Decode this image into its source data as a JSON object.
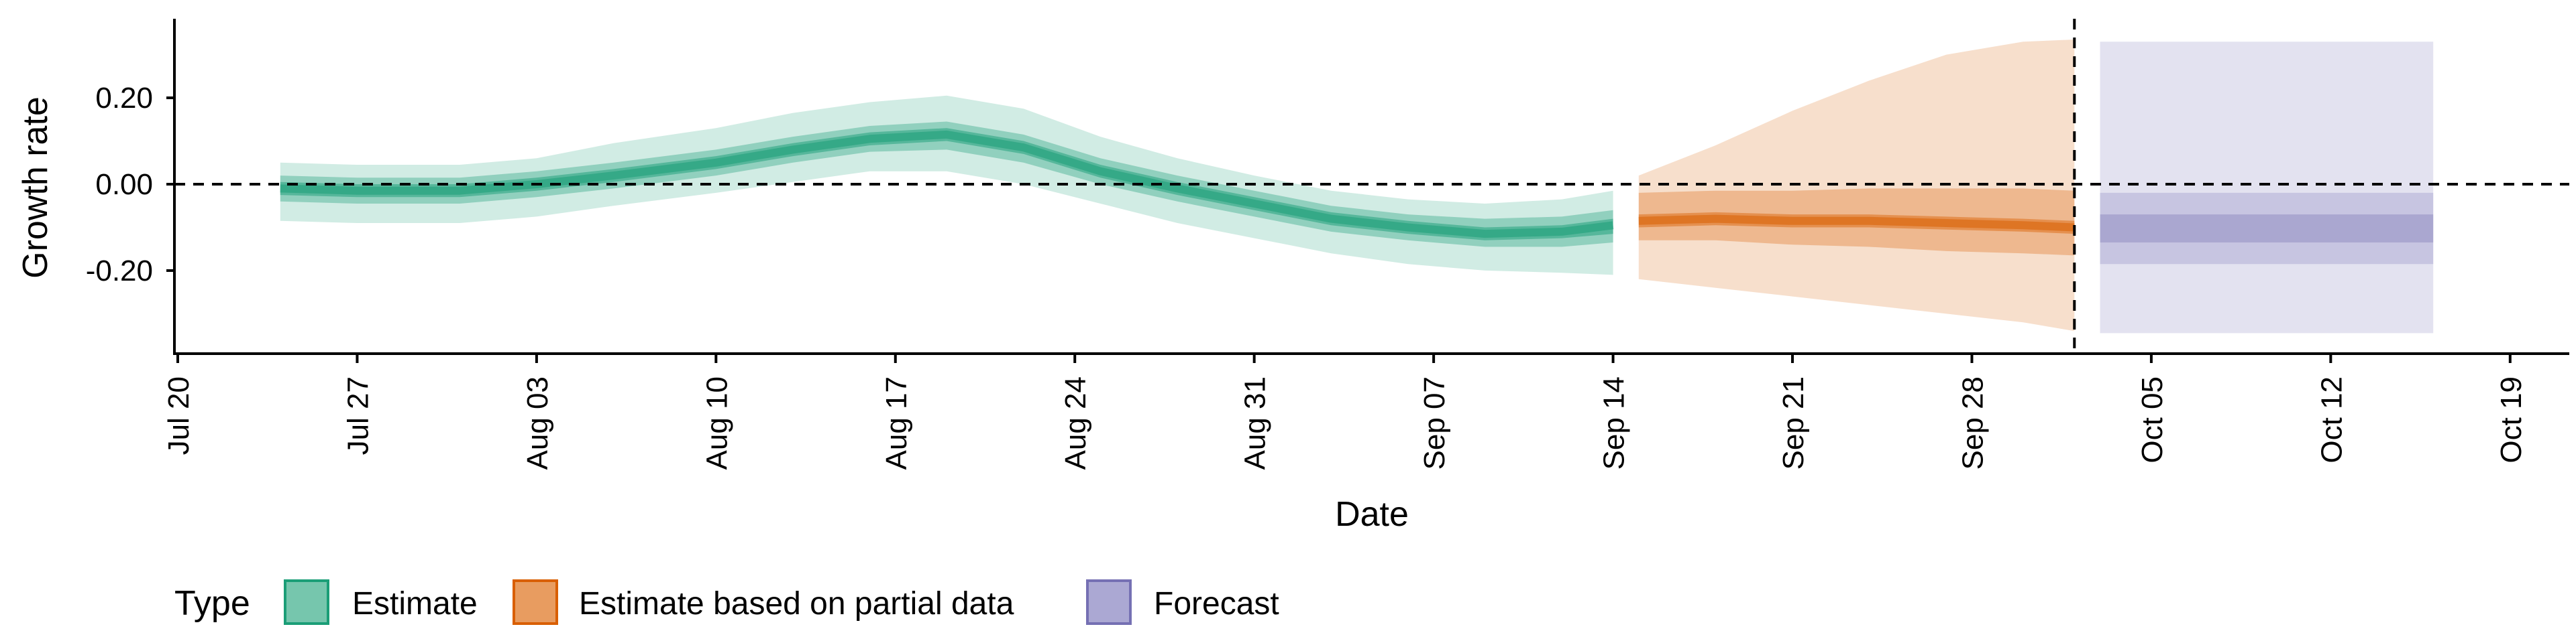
{
  "chart_data": {
    "type": "area",
    "title": "",
    "xlabel": "Date",
    "ylabel": "Growth rate",
    "x_ticks": [
      "Jul 20",
      "Jul 27",
      "Aug 03",
      "Aug 10",
      "Aug 17",
      "Aug 24",
      "Aug 31",
      "Sep 07",
      "Sep 14",
      "Sep 21",
      "Sep 28",
      "Oct 05",
      "Oct 12",
      "Oct 19"
    ],
    "y_ticks": [
      "0.20",
      "0.00",
      "-0.20"
    ],
    "xlim": [
      "2020-07-20",
      "2020-10-20"
    ],
    "ylim": [
      -0.38,
      0.38
    ],
    "grid": false,
    "reference_lines": [
      {
        "type": "horizontal",
        "y": 0.0,
        "style": "dashed"
      },
      {
        "type": "vertical",
        "x": "2020-10-02",
        "style": "dashed"
      }
    ],
    "legend": {
      "title": "Type",
      "placement": "bottom",
      "entries": [
        "Estimate",
        "Estimate based on partial data",
        "Forecast"
      ]
    },
    "colors": {
      "Estimate": "#1b9e77",
      "Estimate based on partial data": "#d95f02",
      "Forecast": "#7570b3"
    },
    "series": [
      {
        "name": "Estimate",
        "x": [
          "2020-07-24",
          "2020-07-27",
          "2020-07-31",
          "2020-08-03",
          "2020-08-06",
          "2020-08-10",
          "2020-08-13",
          "2020-08-16",
          "2020-08-19",
          "2020-08-22",
          "2020-08-25",
          "2020-08-28",
          "2020-08-31",
          "2020-09-03",
          "2020-09-06",
          "2020-09-09",
          "2020-09-12",
          "2020-09-14"
        ],
        "median": [
          -0.01,
          -0.015,
          -0.015,
          0.0,
          0.02,
          0.05,
          0.08,
          0.105,
          0.115,
          0.085,
          0.03,
          -0.01,
          -0.045,
          -0.08,
          -0.1,
          -0.115,
          -0.11,
          -0.095
        ],
        "lower_20": [
          -0.025,
          -0.03,
          -0.03,
          -0.015,
          0.005,
          0.035,
          0.065,
          0.09,
          0.1,
          0.07,
          0.015,
          -0.025,
          -0.06,
          -0.095,
          -0.115,
          -0.13,
          -0.125,
          -0.115
        ],
        "upper_20": [
          0.005,
          0.0,
          0.0,
          0.015,
          0.035,
          0.065,
          0.095,
          0.12,
          0.13,
          0.1,
          0.045,
          0.005,
          -0.03,
          -0.065,
          -0.085,
          -0.1,
          -0.095,
          -0.08
        ],
        "lower_50": [
          -0.04,
          -0.045,
          -0.045,
          -0.03,
          -0.01,
          0.02,
          0.05,
          0.075,
          0.08,
          0.05,
          0.0,
          -0.04,
          -0.075,
          -0.11,
          -0.13,
          -0.145,
          -0.145,
          -0.135
        ],
        "upper_50": [
          0.02,
          0.015,
          0.015,
          0.03,
          0.05,
          0.08,
          0.11,
          0.135,
          0.145,
          0.115,
          0.06,
          0.02,
          -0.015,
          -0.05,
          -0.07,
          -0.08,
          -0.075,
          -0.06
        ],
        "lower_90": [
          -0.085,
          -0.09,
          -0.09,
          -0.075,
          -0.05,
          -0.02,
          0.005,
          0.03,
          0.03,
          0.0,
          -0.045,
          -0.09,
          -0.125,
          -0.16,
          -0.185,
          -0.2,
          -0.205,
          -0.21
        ],
        "upper_90": [
          0.05,
          0.045,
          0.045,
          0.06,
          0.095,
          0.13,
          0.165,
          0.19,
          0.205,
          0.175,
          0.11,
          0.06,
          0.02,
          -0.015,
          -0.035,
          -0.045,
          -0.035,
          -0.015
        ]
      },
      {
        "name": "Estimate based on partial data",
        "x": [
          "2020-09-15",
          "2020-09-18",
          "2020-09-21",
          "2020-09-24",
          "2020-09-27",
          "2020-09-30",
          "2020-10-02"
        ],
        "median": [
          -0.085,
          -0.08,
          -0.085,
          -0.085,
          -0.09,
          -0.095,
          -0.1
        ],
        "lower_20": [
          -0.1,
          -0.095,
          -0.1,
          -0.1,
          -0.105,
          -0.11,
          -0.115
        ],
        "upper_20": [
          -0.07,
          -0.065,
          -0.07,
          -0.07,
          -0.075,
          -0.08,
          -0.085
        ],
        "lower_50": [
          -0.13,
          -0.13,
          -0.14,
          -0.145,
          -0.155,
          -0.16,
          -0.165
        ],
        "upper_50": [
          -0.02,
          -0.015,
          -0.015,
          -0.01,
          -0.01,
          -0.01,
          -0.015
        ],
        "lower_90": [
          -0.22,
          -0.24,
          -0.26,
          -0.28,
          -0.3,
          -0.32,
          -0.34
        ],
        "upper_90": [
          0.02,
          0.09,
          0.17,
          0.24,
          0.3,
          0.33,
          0.335
        ]
      },
      {
        "name": "Forecast",
        "x": [
          "2020-10-03",
          "2020-10-16"
        ],
        "lower_20": [
          -0.135,
          -0.135
        ],
        "upper_20": [
          -0.07,
          -0.07
        ],
        "lower_50": [
          -0.185,
          -0.185
        ],
        "upper_50": [
          -0.02,
          -0.02
        ],
        "lower_90": [
          -0.345,
          -0.345
        ],
        "upper_90": [
          0.33,
          0.33
        ]
      }
    ]
  }
}
